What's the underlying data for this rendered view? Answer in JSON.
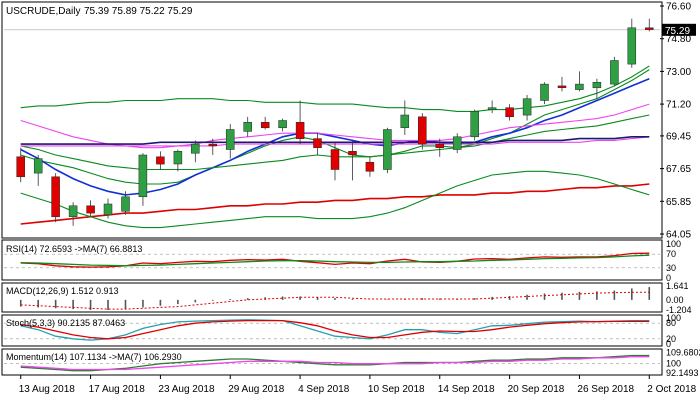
{
  "header": {
    "symbol": "USCRUDE,Daily",
    "ohlc": "75.39 75.89 75.22 75.29"
  },
  "colors": {
    "up": "#2ea043",
    "down": "#e00000",
    "grid": "#bdbdbd",
    "price_tag_bg": "#000000",
    "ema_fast": "#0b8a1e",
    "ema_blue": "#1330d6",
    "ma_magenta": "#ee44ee",
    "ma_navy": "#1a1a6e",
    "ma_red": "#dd0000",
    "ma_green_bottom": "#0b8a1e"
  },
  "chart_data": [
    {
      "type": "candlestick",
      "title": "USCRUDE,Daily",
      "last_price": 75.29,
      "ylim": [
        64.05,
        76.6
      ],
      "y_ticks": [
        76.6,
        74.8,
        73.0,
        71.2,
        69.45,
        67.65,
        65.85,
        64.05
      ],
      "y_tick_labels": [
        "76.60",
        "74.80",
        "73.00",
        "71.20",
        "69.45",
        "67.65",
        "65.85",
        "64.05"
      ],
      "last_price_label": "75.29",
      "x_tick_labels": [
        "13 Aug 2018",
        "17 Aug 2018",
        "23 Aug 2018",
        "29 Aug 2018",
        "4 Sep 2018",
        "10 Sep 2018",
        "14 Sep 2018",
        "20 Sep 2018",
        "26 Sep 2018",
        "2 Oct 2018"
      ],
      "x_tick_index": [
        0,
        4,
        8,
        12,
        16,
        20,
        24,
        28,
        32,
        36
      ],
      "candles": [
        {
          "o": 68.3,
          "h": 68.8,
          "l": 66.9,
          "c": 67.2
        },
        {
          "o": 67.4,
          "h": 68.4,
          "l": 66.7,
          "c": 68.2
        },
        {
          "o": 67.2,
          "h": 67.4,
          "l": 64.7,
          "c": 65.0
        },
        {
          "o": 65.0,
          "h": 65.8,
          "l": 64.5,
          "c": 65.6
        },
        {
          "o": 65.6,
          "h": 65.9,
          "l": 65.0,
          "c": 65.2
        },
        {
          "o": 65.1,
          "h": 66.0,
          "l": 64.9,
          "c": 65.7
        },
        {
          "o": 65.3,
          "h": 66.4,
          "l": 65.1,
          "c": 66.1
        },
        {
          "o": 66.1,
          "h": 68.5,
          "l": 65.6,
          "c": 68.4
        },
        {
          "o": 68.3,
          "h": 68.6,
          "l": 67.6,
          "c": 67.9
        },
        {
          "o": 67.9,
          "h": 68.7,
          "l": 67.5,
          "c": 68.6
        },
        {
          "o": 68.5,
          "h": 69.2,
          "l": 68.0,
          "c": 69.0
        },
        {
          "o": 69.0,
          "h": 69.3,
          "l": 68.4,
          "c": 68.9
        },
        {
          "o": 68.7,
          "h": 70.1,
          "l": 68.2,
          "c": 69.8
        },
        {
          "o": 69.7,
          "h": 70.5,
          "l": 69.4,
          "c": 70.2
        },
        {
          "o": 70.2,
          "h": 70.5,
          "l": 69.8,
          "c": 69.9
        },
        {
          "o": 69.9,
          "h": 70.4,
          "l": 69.7,
          "c": 70.3
        },
        {
          "o": 70.2,
          "h": 71.4,
          "l": 69.0,
          "c": 69.3
        },
        {
          "o": 69.3,
          "h": 69.6,
          "l": 68.4,
          "c": 68.8
        },
        {
          "o": 68.7,
          "h": 69.1,
          "l": 67.0,
          "c": 67.6
        },
        {
          "o": 68.6,
          "h": 69.2,
          "l": 67.0,
          "c": 68.4
        },
        {
          "o": 68.0,
          "h": 68.3,
          "l": 67.2,
          "c": 67.5
        },
        {
          "o": 67.6,
          "h": 69.9,
          "l": 67.4,
          "c": 69.8
        },
        {
          "o": 69.9,
          "h": 71.4,
          "l": 69.5,
          "c": 70.6
        },
        {
          "o": 70.5,
          "h": 70.7,
          "l": 68.7,
          "c": 69.0
        },
        {
          "o": 69.0,
          "h": 69.3,
          "l": 68.3,
          "c": 68.8
        },
        {
          "o": 68.7,
          "h": 69.6,
          "l": 68.5,
          "c": 69.4
        },
        {
          "o": 69.4,
          "h": 70.9,
          "l": 69.2,
          "c": 70.8
        },
        {
          "o": 70.9,
          "h": 71.4,
          "l": 70.7,
          "c": 71.0
        },
        {
          "o": 71.0,
          "h": 71.2,
          "l": 70.3,
          "c": 70.5
        },
        {
          "o": 70.6,
          "h": 71.7,
          "l": 70.3,
          "c": 71.5
        },
        {
          "o": 71.4,
          "h": 72.4,
          "l": 71.2,
          "c": 72.3
        },
        {
          "o": 72.2,
          "h": 72.7,
          "l": 71.9,
          "c": 72.1
        },
        {
          "o": 72.0,
          "h": 73.0,
          "l": 71.9,
          "c": 72.3
        },
        {
          "o": 72.1,
          "h": 72.6,
          "l": 71.5,
          "c": 72.4
        },
        {
          "o": 72.3,
          "h": 73.8,
          "l": 72.2,
          "c": 73.6
        },
        {
          "o": 73.4,
          "h": 75.9,
          "l": 73.2,
          "c": 75.4
        },
        {
          "o": 75.4,
          "h": 75.9,
          "l": 75.2,
          "c": 75.3
        }
      ],
      "lines": [
        {
          "color": "ema_fast",
          "values": [
            68.4,
            68.1,
            67.9,
            67.7,
            67.4,
            67.1,
            66.9,
            66.8,
            66.8,
            66.9,
            67.3,
            67.7,
            68.1,
            68.5,
            68.9,
            69.2,
            69.4,
            69.2,
            68.8,
            68.4,
            68.3,
            68.4,
            68.6,
            68.9,
            68.9,
            68.8,
            69.0,
            69.3,
            69.6,
            70.1,
            70.6,
            70.9,
            71.2,
            71.5,
            72.0,
            72.5,
            73.1
          ]
        },
        {
          "color": "ema_blue",
          "values": [
            68.7,
            68.2,
            67.6,
            67.1,
            66.7,
            66.4,
            66.2,
            66.3,
            66.5,
            66.8,
            67.3,
            67.7,
            68.1,
            68.6,
            69.0,
            69.4,
            69.6,
            69.6,
            69.4,
            69.2,
            69.0,
            68.9,
            69.1,
            69.2,
            69.1,
            69.0,
            69.1,
            69.4,
            69.6,
            69.9,
            70.3,
            70.6,
            71.0,
            71.4,
            71.8,
            72.2,
            72.6
          ]
        },
        {
          "color": "ema_fast",
          "values": [
            68.9,
            68.7,
            68.4,
            68.2,
            68.0,
            67.8,
            67.7,
            67.6,
            67.6,
            67.6,
            67.6,
            67.7,
            67.8,
            67.9,
            68.0,
            68.1,
            68.3,
            68.4,
            68.3,
            68.3,
            68.3,
            68.4,
            68.5,
            68.6,
            68.7,
            68.8,
            68.9,
            69.1,
            69.3,
            69.5,
            69.7,
            69.8,
            69.9,
            70.0,
            70.2,
            70.4,
            70.6
          ]
        },
        {
          "color": "ma_magenta",
          "values": [
            70.3,
            70.0,
            69.7,
            69.4,
            69.2,
            69.0,
            68.9,
            68.8,
            68.8,
            68.9,
            69.0,
            69.2,
            69.3,
            69.4,
            69.5,
            69.6,
            69.6,
            69.6,
            69.5,
            69.4,
            69.3,
            69.2,
            69.2,
            69.2,
            69.2,
            69.3,
            69.5,
            69.7,
            69.9,
            70.0,
            70.1,
            70.2,
            70.3,
            70.4,
            70.6,
            70.9,
            71.2
          ]
        },
        {
          "color": "ma_magenta",
          "values": [
            68.9,
            68.9,
            68.9,
            68.9,
            68.9,
            68.9,
            68.9,
            68.9,
            68.9,
            68.9,
            68.9,
            68.9,
            69.0,
            69.0,
            69.0,
            69.0,
            69.0,
            69.0,
            69.0,
            69.0,
            69.0,
            69.0,
            69.0,
            69.0,
            69.0,
            69.0,
            69.0,
            69.0,
            69.1,
            69.1,
            69.1,
            69.1,
            69.1,
            69.2,
            69.2,
            69.3,
            69.4
          ]
        },
        {
          "color": "ma_navy",
          "values": [
            69.0,
            69.0,
            69.0,
            69.0,
            69.0,
            69.0,
            69.0,
            69.0,
            69.1,
            69.1,
            69.1,
            69.1,
            69.1,
            69.1,
            69.1,
            69.1,
            69.1,
            69.1,
            69.1,
            69.1,
            69.1,
            69.1,
            69.1,
            69.1,
            69.1,
            69.1,
            69.1,
            69.1,
            69.2,
            69.2,
            69.2,
            69.2,
            69.3,
            69.3,
            69.3,
            69.4,
            69.4
          ]
        },
        {
          "color": "ma_red",
          "values": [
            64.6,
            64.7,
            64.8,
            64.9,
            65.0,
            65.1,
            65.2,
            65.2,
            65.3,
            65.4,
            65.4,
            65.5,
            65.6,
            65.6,
            65.7,
            65.7,
            65.8,
            65.8,
            65.9,
            65.9,
            66.0,
            66.0,
            66.1,
            66.1,
            66.2,
            66.2,
            66.2,
            66.3,
            66.3,
            66.4,
            66.4,
            66.5,
            66.6,
            66.6,
            66.7,
            66.7,
            66.8
          ]
        },
        {
          "color": "ema_fast",
          "values": [
            71.0,
            71.1,
            71.1,
            71.2,
            71.3,
            71.3,
            71.4,
            71.4,
            71.4,
            71.5,
            71.5,
            71.5,
            71.4,
            71.4,
            71.3,
            71.3,
            71.3,
            71.2,
            71.2,
            71.2,
            71.1,
            71.0,
            71.0,
            70.9,
            70.9,
            70.8,
            70.8,
            70.9,
            70.9,
            71.0,
            71.1,
            71.3,
            71.5,
            71.8,
            72.2,
            72.7,
            73.3
          ]
        },
        {
          "color": "ema_fast",
          "values": [
            66.3,
            66.0,
            65.7,
            65.3,
            65.0,
            64.7,
            64.5,
            64.4,
            64.4,
            64.5,
            64.6,
            64.7,
            64.8,
            64.9,
            65.0,
            65.0,
            65.0,
            64.9,
            64.9,
            64.9,
            65.0,
            65.2,
            65.5,
            65.9,
            66.3,
            66.7,
            67.0,
            67.3,
            67.4,
            67.5,
            67.5,
            67.4,
            67.3,
            67.1,
            66.8,
            66.5,
            66.2
          ]
        }
      ]
    },
    {
      "type": "line",
      "title": "RSI(14) 72.6593 ->MA(7) 66.8813",
      "ylim": [
        0,
        100
      ],
      "y_tick_labels": [
        "100",
        "70",
        "30",
        "0"
      ],
      "y_ticks": [
        100,
        70,
        30,
        0
      ],
      "series": [
        {
          "color": "ma_red",
          "values": [
            44,
            42,
            36,
            33,
            32,
            33,
            36,
            44,
            42,
            46,
            49,
            48,
            52,
            54,
            53,
            55,
            49,
            45,
            40,
            44,
            42,
            50,
            55,
            47,
            46,
            49,
            56,
            57,
            55,
            59,
            62,
            61,
            62,
            62,
            66,
            72,
            73
          ]
        },
        {
          "color": "ema_fast",
          "values": [
            45,
            44,
            42,
            40,
            38,
            37,
            36,
            37,
            38,
            40,
            42,
            44,
            46,
            48,
            50,
            51,
            51,
            50,
            48,
            47,
            46,
            46,
            47,
            48,
            48,
            49,
            50,
            52,
            53,
            55,
            57,
            58,
            59,
            60,
            62,
            65,
            67
          ]
        }
      ]
    },
    {
      "type": "bar",
      "title": "MACD(12,26,9) 1.512 0.913",
      "ylim": [
        -1.204,
        1.641
      ],
      "y_tick_labels": [
        "1.641",
        "0.00",
        "-1.204"
      ],
      "y_ticks": [
        1.641,
        0.0,
        -1.204
      ],
      "values": [
        -0.8,
        -0.9,
        -1.0,
        -1.1,
        -1.2,
        -1.2,
        -1.1,
        -0.9,
        -0.7,
        -0.5,
        -0.3,
        -0.1,
        0.1,
        0.2,
        0.3,
        0.4,
        0.4,
        0.3,
        0.2,
        0.1,
        0.0,
        0.05,
        0.15,
        0.2,
        0.15,
        0.1,
        0.2,
        0.35,
        0.45,
        0.6,
        0.75,
        0.85,
        0.95,
        1.0,
        1.1,
        1.35,
        1.51
      ],
      "signal": [
        -0.6,
        -0.7,
        -0.8,
        -0.9,
        -1.0,
        -1.1,
        -1.1,
        -1.0,
        -0.9,
        -0.8,
        -0.6,
        -0.4,
        -0.2,
        0.0,
        0.1,
        0.2,
        0.3,
        0.3,
        0.3,
        0.2,
        0.1,
        0.1,
        0.1,
        0.1,
        0.1,
        0.1,
        0.1,
        0.2,
        0.3,
        0.4,
        0.5,
        0.6,
        0.7,
        0.8,
        0.85,
        0.9,
        0.91
      ]
    },
    {
      "type": "line",
      "title": "Stoch(5,3,3) 90.2135 87.0463",
      "ylim": [
        0,
        100
      ],
      "y_tick_labels": [
        "100",
        "80",
        "20",
        "0"
      ],
      "y_ticks": [
        100,
        80,
        20,
        0
      ],
      "series": [
        {
          "color": "#2a9fb0",
          "values": [
            70,
            55,
            30,
            20,
            15,
            20,
            35,
            60,
            75,
            85,
            88,
            90,
            92,
            93,
            92,
            90,
            70,
            50,
            30,
            25,
            20,
            35,
            55,
            55,
            45,
            40,
            55,
            70,
            72,
            78,
            84,
            86,
            88,
            86,
            88,
            90,
            90
          ]
        },
        {
          "color": "ma_red",
          "values": [
            75,
            65,
            50,
            35,
            25,
            20,
            25,
            40,
            55,
            70,
            80,
            85,
            88,
            90,
            90,
            90,
            82,
            70,
            50,
            35,
            25,
            25,
            35,
            45,
            50,
            48,
            48,
            55,
            65,
            72,
            78,
            82,
            85,
            86,
            87,
            87,
            87
          ]
        }
      ]
    },
    {
      "type": "line",
      "title": "Momentum(14) 107.1134 ->MA(7) 106.2930",
      "ylim": [
        92,
        110
      ],
      "y_tick_labels": [
        "109.6802",
        "100",
        "92.1493"
      ],
      "y_ticks": [
        109.6802,
        100,
        92.1493
      ],
      "series": [
        {
          "color": "#2e7d32",
          "values": [
            97,
            96,
            95,
            94,
            94,
            95,
            96,
            98,
            100,
            101,
            102,
            103,
            104,
            104,
            103,
            102,
            101,
            100,
            99,
            99,
            99,
            100,
            101,
            101,
            101,
            101,
            102,
            103,
            103,
            104,
            104,
            105,
            105,
            105,
            106,
            107,
            107
          ]
        },
        {
          "color": "ma_magenta",
          "values": [
            98,
            97,
            96,
            95,
            95,
            95,
            95,
            96,
            97,
            98,
            99,
            100,
            101,
            102,
            102,
            102,
            102,
            101,
            101,
            100,
            100,
            100,
            100,
            100,
            101,
            101,
            101,
            102,
            102,
            103,
            103,
            104,
            104,
            105,
            105,
            106,
            106
          ]
        }
      ]
    }
  ]
}
